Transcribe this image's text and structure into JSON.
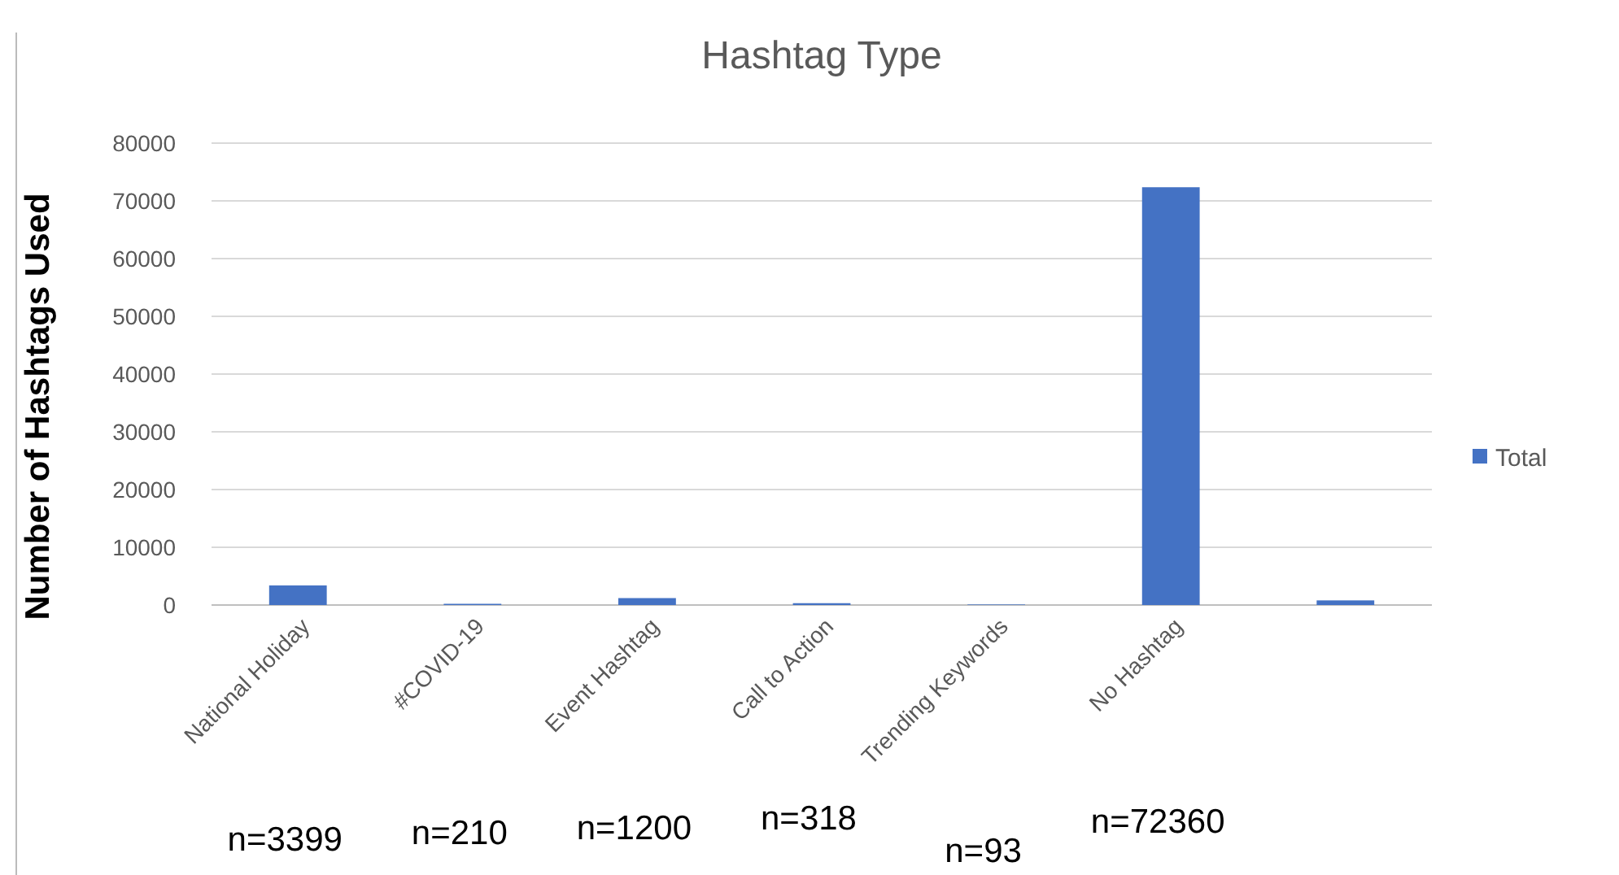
{
  "chart_data": {
    "type": "bar",
    "title": "Hashtag Type",
    "ylabel": "Number of Hashtags Used",
    "categories": [
      "National Holiday",
      "#COVID-19",
      "Event Hashtag",
      "Call to Action",
      "Trending Keywords",
      "No Hashtag",
      null
    ],
    "series": [
      {
        "name": "Total",
        "color": "#4472c4",
        "values": [
          3399,
          210,
          1200,
          318,
          93,
          72360,
          800
        ]
      }
    ],
    "ylim": [
      0,
      80000
    ],
    "yticks": [
      0,
      10000,
      20000,
      30000,
      40000,
      50000,
      60000,
      70000,
      80000
    ],
    "grid": "y",
    "legend": "right",
    "annotations": [
      "n=3399",
      "n=210",
      "n=1200",
      "n=318",
      "n=93",
      "n=72360"
    ]
  }
}
